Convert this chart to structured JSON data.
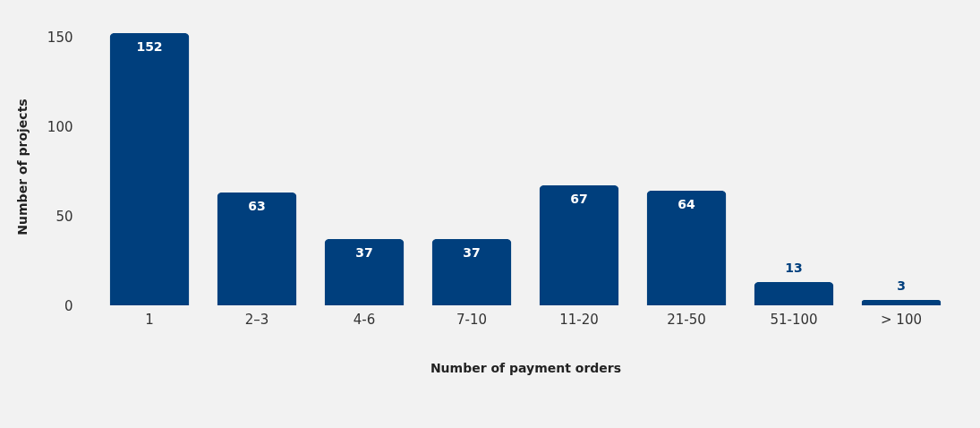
{
  "chart_data": {
    "type": "bar",
    "categories": [
      "1",
      "2–3",
      "4-6",
      "7-10",
      "11-20",
      "21-50",
      "51-100",
      "> 100"
    ],
    "values": [
      152,
      63,
      37,
      37,
      67,
      64,
      13,
      3
    ],
    "color": "#003f7d",
    "xlabel": "Number of payment orders",
    "ylabel": "Number of projects",
    "ylim": [
      0,
      155
    ],
    "yticks": [
      0,
      50,
      100,
      150
    ],
    "grid": false,
    "data_labels": true
  }
}
